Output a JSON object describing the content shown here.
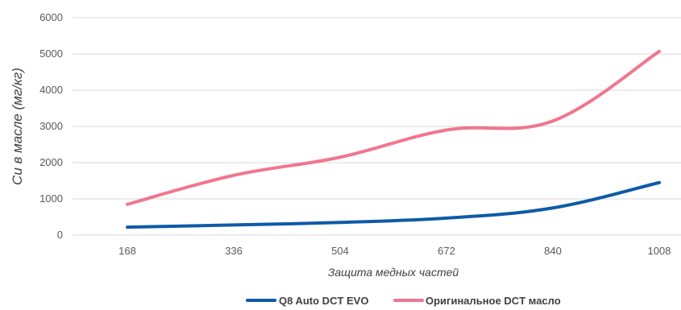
{
  "chart_data": {
    "type": "line",
    "title": "",
    "xlabel": "Защита медных частей",
    "ylabel": "Cu в масле (мг/кг)",
    "categories": [
      "168",
      "336",
      "504",
      "672",
      "840",
      "1008"
    ],
    "yticks": [
      "0",
      "1000",
      "2000",
      "3000",
      "4000",
      "5000",
      "6000"
    ],
    "ylim": [
      0,
      6000
    ],
    "grid": true,
    "legend_position": "bottom",
    "series": [
      {
        "name": "Q8 Auto DCT EVO",
        "color": "#0e5aa7",
        "values": [
          220,
          280,
          350,
          470,
          750,
          1450
        ]
      },
      {
        "name": "Оригинальное DCT масло",
        "color": "#f0768e",
        "values": [
          850,
          1650,
          2150,
          2900,
          3150,
          5070
        ]
      }
    ]
  }
}
